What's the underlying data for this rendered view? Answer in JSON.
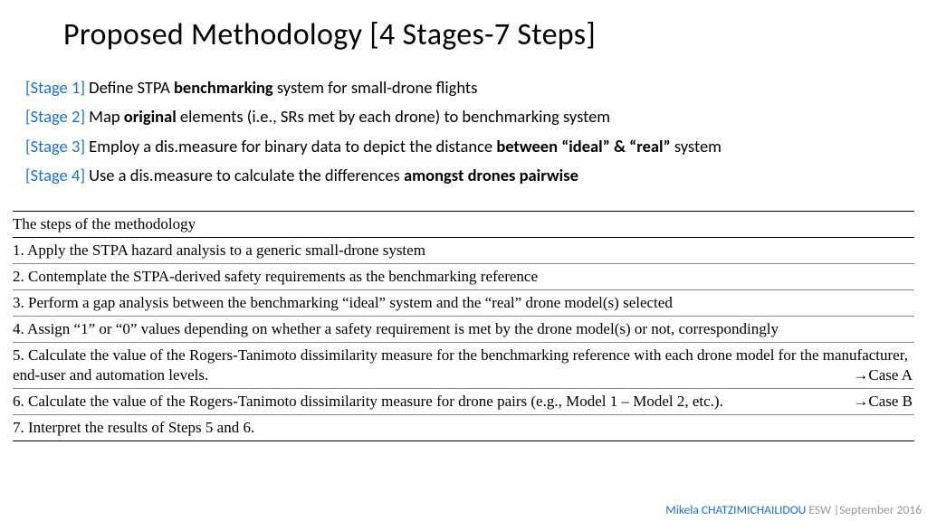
{
  "title": "Proposed Methodology [4 Stages-7 Steps]",
  "stages": [
    {
      "label": "[Stage 1]",
      "pre": " Define STPA ",
      "bold": "benchmarking",
      "post": " system for small-drone flights"
    },
    {
      "label": "[Stage 2]",
      "pre": " Map ",
      "bold": "original",
      "post": " elements (i.e., SRs met by each drone) to benchmarking system"
    },
    {
      "label": "[Stage 3]",
      "pre": " Employ a dis.measure for binary data to depict the distance ",
      "bold": "between “ideal” & “real”",
      "post": " system"
    },
    {
      "label": "[Stage 4]",
      "pre": " Use a dis.measure to calculate the differences ",
      "bold": "amongst drones pairwise",
      "post": ""
    }
  ],
  "steps_header": "The steps of the methodology",
  "steps": [
    {
      "text": "1. Apply the STPA hazard analysis to a generic small-drone system",
      "case": ""
    },
    {
      "text": "2. Contemplate the STPA-derived safety requirements as the benchmarking reference",
      "case": ""
    },
    {
      "text": "3. Perform a gap analysis between the benchmarking “ideal” system and the “real” drone model(s) selected",
      "case": ""
    },
    {
      "text": "4. Assign “1” or “0” values depending on whether a safety requirement is met by the drone model(s) or not, correspondingly",
      "case": ""
    },
    {
      "text": "5. Calculate the value of the Rogers-Tanimoto dissimilarity measure for the benchmarking reference with each drone model for the manufacturer, end-user and automation levels.",
      "case": "→Case A"
    },
    {
      "text": "6. Calculate the value of the Rogers-Tanimoto dissimilarity measure for drone pairs (e.g., Model 1 – Model 2, etc.).",
      "case": "→Case B"
    },
    {
      "text": "7. Interpret the results of Steps 5 and 6.",
      "case": ""
    }
  ],
  "footer": {
    "author": "Mikela CHATZIMICHAILIDOU",
    "rest": " ESW |September 2016"
  }
}
